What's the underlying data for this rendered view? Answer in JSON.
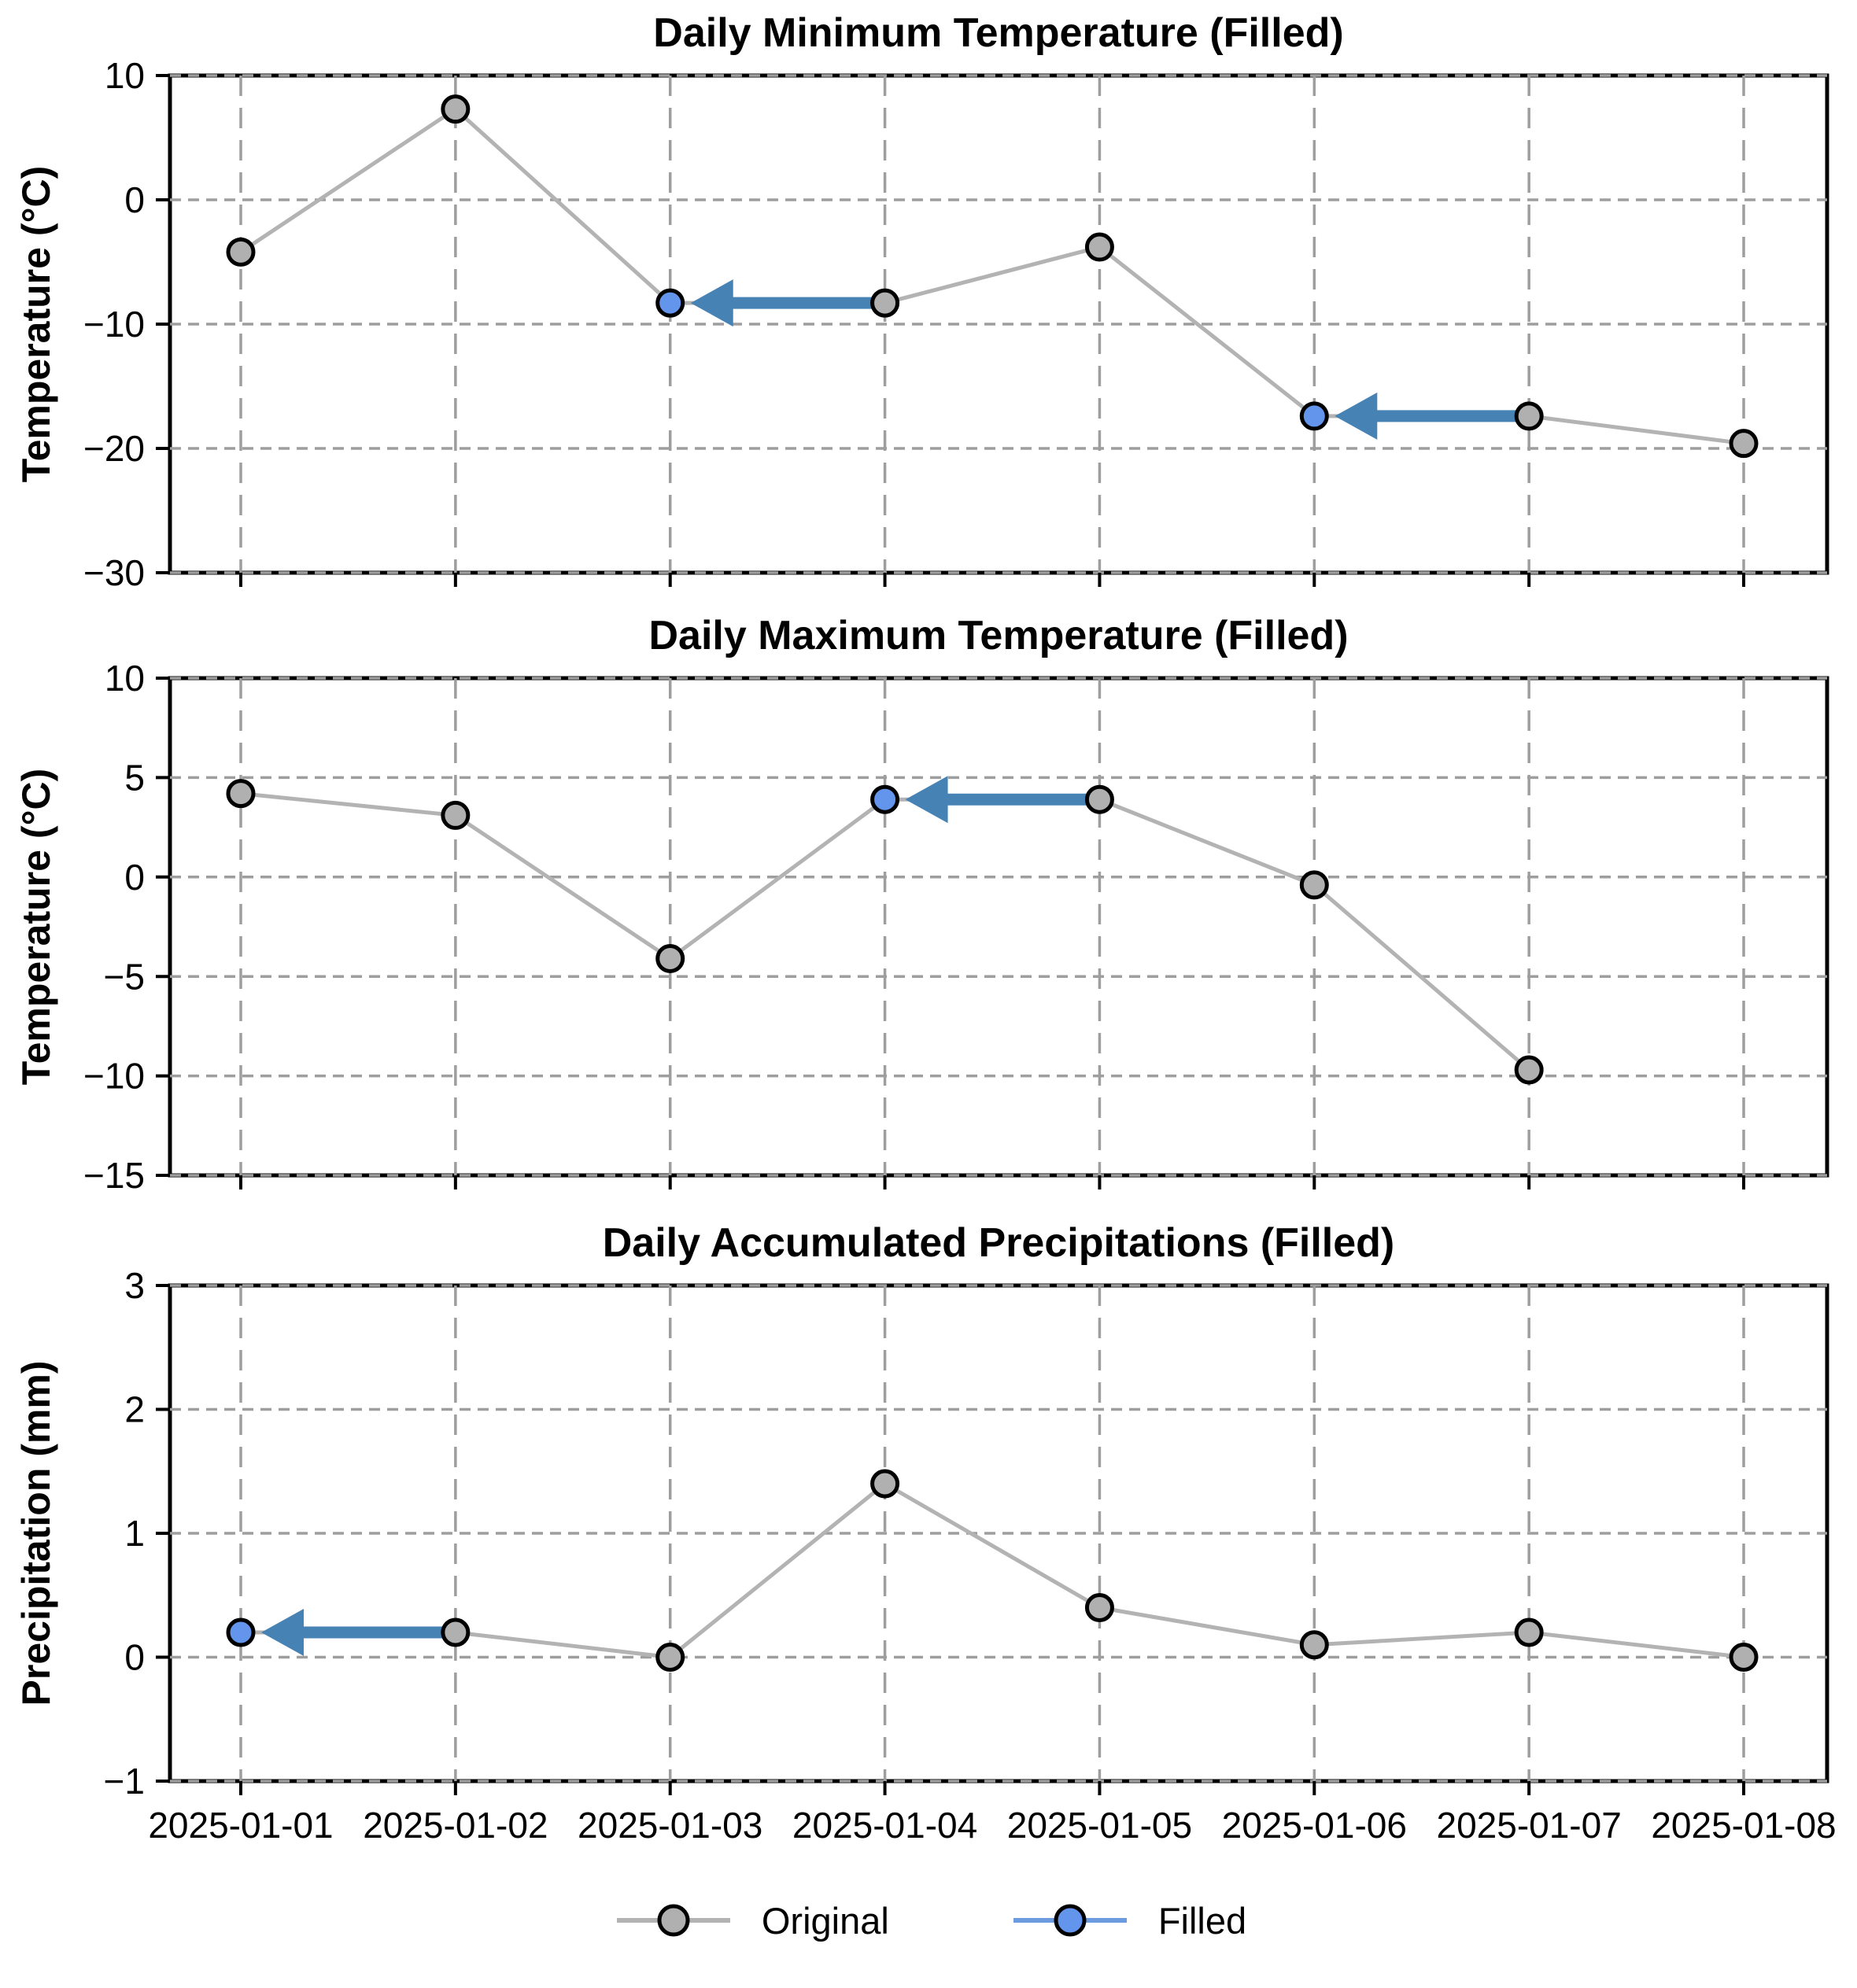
{
  "figure": {
    "background": "#ffffff"
  },
  "colors": {
    "original_line": "#b3b3b3",
    "original_marker": "#b0b0b0",
    "filled_marker": "#6495ed",
    "filled_line": "#6c9be0",
    "arrow": "#4682b4",
    "grid": "#9e9e9e",
    "axis": "#000000",
    "text": "#000000"
  },
  "x_categories": [
    "2025-01-01",
    "2025-01-02",
    "2025-01-03",
    "2025-01-04",
    "2025-01-05",
    "2025-01-06",
    "2025-01-07",
    "2025-01-08"
  ],
  "legend": {
    "items": [
      {
        "label": "Original",
        "type": "original"
      },
      {
        "label": "Filled",
        "type": "filled"
      }
    ]
  },
  "chart_data": [
    {
      "type": "line",
      "title": "Daily Minimum Temperature (Filled)",
      "xlabel": "",
      "ylabel": "Temperature (°C)",
      "x": [
        "2025-01-01",
        "2025-01-02",
        "2025-01-03",
        "2025-01-04",
        "2025-01-05",
        "2025-01-06",
        "2025-01-07",
        "2025-01-08"
      ],
      "values": [
        -4.2,
        7.3,
        -8.3,
        -8.3,
        -3.8,
        -17.4,
        -17.4,
        -19.6
      ],
      "filled": [
        {
          "target_index": 2,
          "source_index": 3
        },
        {
          "target_index": 5,
          "source_index": 6
        }
      ],
      "ylim": [
        -30,
        10
      ],
      "yticks": [
        10,
        0,
        -10,
        -20,
        -30
      ],
      "grid": true,
      "show_x_tick_labels": false,
      "legend_position": "none"
    },
    {
      "type": "line",
      "title": "Daily Maximum Temperature (Filled)",
      "xlabel": "",
      "ylabel": "Temperature (°C)",
      "x": [
        "2025-01-01",
        "2025-01-02",
        "2025-01-03",
        "2025-01-04",
        "2025-01-05",
        "2025-01-06",
        "2025-01-07",
        "2025-01-08"
      ],
      "values": [
        4.2,
        3.1,
        -4.1,
        3.9,
        3.9,
        -0.4,
        -9.7,
        null
      ],
      "filled": [
        {
          "target_index": 3,
          "source_index": 4
        }
      ],
      "ylim": [
        -15,
        10
      ],
      "yticks": [
        10,
        5,
        0,
        -5,
        -10,
        -15
      ],
      "grid": true,
      "show_x_tick_labels": false,
      "legend_position": "none"
    },
    {
      "type": "line",
      "title": "Daily Accumulated Precipitations (Filled)",
      "xlabel": "",
      "ylabel": "Precipitation (mm)",
      "x": [
        "2025-01-01",
        "2025-01-02",
        "2025-01-03",
        "2025-01-04",
        "2025-01-05",
        "2025-01-06",
        "2025-01-07",
        "2025-01-08"
      ],
      "values": [
        0.2,
        0.2,
        0.0,
        1.4,
        0.4,
        0.1,
        0.2,
        0.0
      ],
      "filled": [
        {
          "target_index": 0,
          "source_index": 1
        }
      ],
      "ylim": [
        -1,
        3
      ],
      "yticks": [
        3,
        2,
        1,
        0,
        -1
      ],
      "grid": true,
      "show_x_tick_labels": true,
      "legend_position": "below"
    }
  ]
}
